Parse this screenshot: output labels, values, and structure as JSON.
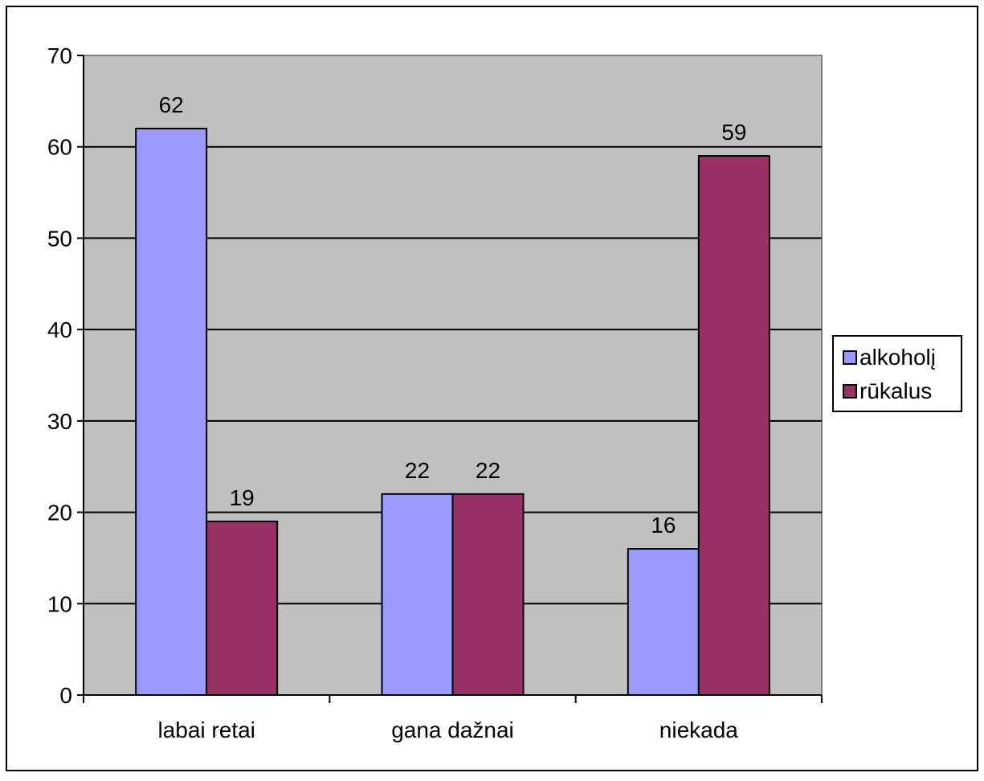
{
  "chart_data": {
    "type": "bar",
    "categories": [
      "labai retai",
      "gana dažnai",
      "niekada"
    ],
    "series": [
      {
        "name": "alkoholį",
        "values": [
          62,
          22,
          16
        ],
        "color": "#9999ff"
      },
      {
        "name": "rūkalus",
        "values": [
          19,
          22,
          59
        ],
        "color": "#993366"
      }
    ],
    "ylim": [
      0,
      70
    ],
    "yticks": [
      0,
      10,
      20,
      30,
      40,
      50,
      60,
      70
    ],
    "grid": true,
    "plot_background": "#c0c0c0",
    "legend_position": "right",
    "data_labels": true
  }
}
